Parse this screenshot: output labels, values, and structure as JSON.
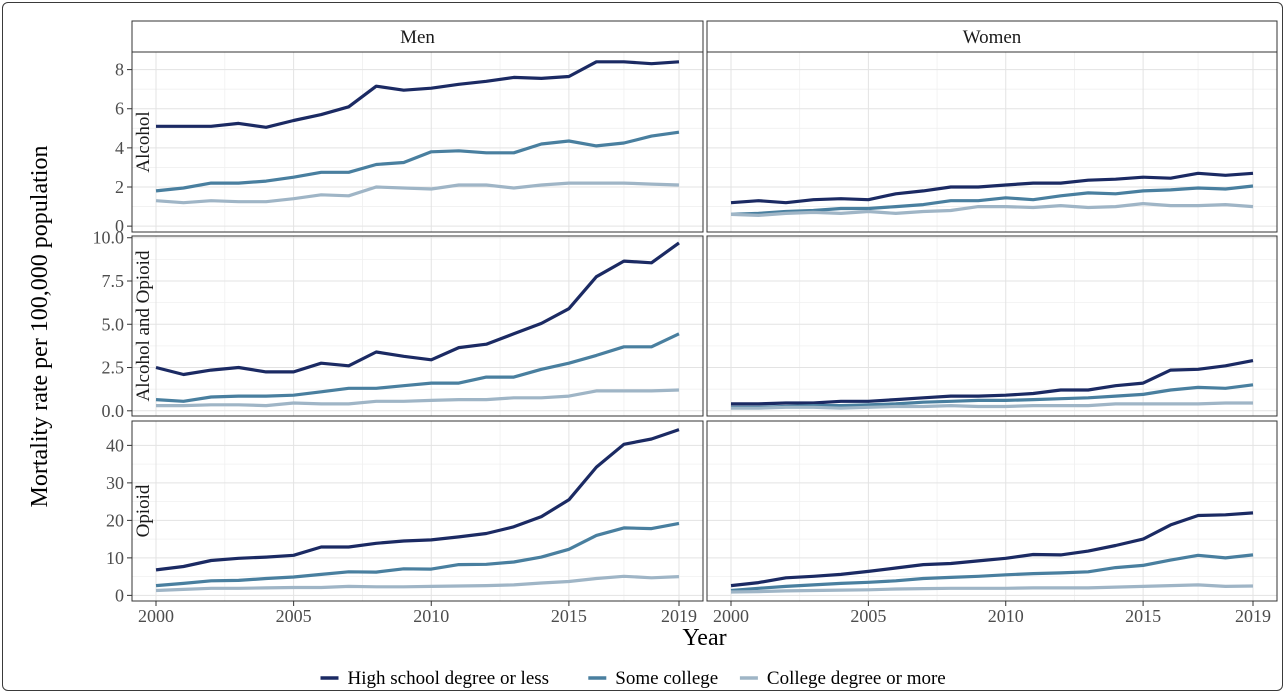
{
  "chart_data": {
    "type": "line",
    "xlabel": "Year",
    "ylabel": "Mortality rate per 100,000 population",
    "x_ticks": [
      2000,
      2005,
      2010,
      2015,
      2019
    ],
    "x": [
      2000,
      2001,
      2002,
      2003,
      2004,
      2005,
      2006,
      2007,
      2008,
      2009,
      2010,
      2011,
      2012,
      2013,
      2014,
      2015,
      2016,
      2017,
      2018,
      2019
    ],
    "columns": [
      "Men",
      "Women"
    ],
    "rows": [
      {
        "label": "Alcohol",
        "ylim": [
          -0.3,
          8.9
        ],
        "y_ticks": [
          0,
          2,
          4,
          6,
          8
        ],
        "y_tick_labels": [
          "0",
          "2",
          "4",
          "6",
          "8"
        ]
      },
      {
        "label": "Alcohol and Opioid",
        "ylim": [
          -0.3,
          10.1
        ],
        "y_ticks": [
          0,
          2.5,
          5,
          7.5,
          10
        ],
        "y_tick_labels": [
          "0.0",
          "2.5",
          "5.0",
          "7.5",
          "10.0"
        ]
      },
      {
        "label": "Opioid",
        "ylim": [
          -1.5,
          46.5
        ],
        "y_ticks": [
          0,
          10,
          20,
          30,
          40
        ],
        "y_tick_labels": [
          "0",
          "10",
          "20",
          "30",
          "40"
        ]
      }
    ],
    "legend": {
      "position": "bottom",
      "entries": [
        "High school degree or less",
        "Some college",
        "College degree or more"
      ]
    },
    "colors": {
      "High school degree or less": "#1b2a63",
      "Some college": "#497f9f",
      "College degree or more": "#9fb5c6"
    },
    "grid": true,
    "panels": [
      {
        "row": "Alcohol",
        "column": "Men",
        "series": [
          {
            "name": "High school degree or less",
            "values": [
              5.1,
              5.1,
              5.1,
              5.25,
              5.05,
              5.4,
              5.7,
              6.1,
              7.15,
              6.95,
              7.05,
              7.25,
              7.4,
              7.6,
              7.55,
              7.65,
              8.4,
              8.4,
              8.3,
              8.4
            ]
          },
          {
            "name": "Some college",
            "values": [
              1.8,
              1.95,
              2.2,
              2.2,
              2.3,
              2.5,
              2.75,
              2.75,
              3.15,
              3.25,
              3.8,
              3.85,
              3.75,
              3.75,
              4.2,
              4.35,
              4.1,
              4.25,
              4.6,
              4.8
            ]
          },
          {
            "name": "College degree or more",
            "values": [
              1.3,
              1.2,
              1.3,
              1.25,
              1.25,
              1.4,
              1.6,
              1.55,
              2.0,
              1.95,
              1.9,
              2.1,
              2.1,
              1.95,
              2.1,
              2.2,
              2.2,
              2.2,
              2.15,
              2.1
            ]
          }
        ]
      },
      {
        "row": "Alcohol",
        "column": "Women",
        "series": [
          {
            "name": "High school degree or less",
            "values": [
              1.2,
              1.3,
              1.2,
              1.35,
              1.4,
              1.35,
              1.65,
              1.8,
              2.0,
              2.0,
              2.1,
              2.2,
              2.2,
              2.35,
              2.4,
              2.5,
              2.45,
              2.7,
              2.6,
              2.7
            ]
          },
          {
            "name": "Some college",
            "values": [
              0.6,
              0.65,
              0.75,
              0.8,
              0.9,
              0.9,
              1.0,
              1.1,
              1.3,
              1.3,
              1.45,
              1.35,
              1.55,
              1.7,
              1.65,
              1.8,
              1.85,
              1.95,
              1.9,
              2.05
            ]
          },
          {
            "name": "College degree or more",
            "values": [
              0.6,
              0.55,
              0.65,
              0.7,
              0.65,
              0.75,
              0.65,
              0.75,
              0.8,
              1.0,
              1.0,
              0.95,
              1.05,
              0.95,
              1.0,
              1.15,
              1.05,
              1.05,
              1.1,
              1.0
            ]
          }
        ]
      },
      {
        "row": "Alcohol and Opioid",
        "column": "Men",
        "series": [
          {
            "name": "High school degree or less",
            "values": [
              2.5,
              2.1,
              2.35,
              2.5,
              2.25,
              2.25,
              2.75,
              2.6,
              3.4,
              3.15,
              2.95,
              3.65,
              3.85,
              4.45,
              5.05,
              5.9,
              7.75,
              8.65,
              8.55,
              9.7
            ]
          },
          {
            "name": "Some college",
            "values": [
              0.65,
              0.55,
              0.8,
              0.85,
              0.85,
              0.9,
              1.1,
              1.3,
              1.3,
              1.45,
              1.6,
              1.6,
              1.95,
              1.95,
              2.4,
              2.75,
              3.2,
              3.7,
              3.7,
              4.45
            ]
          },
          {
            "name": "College degree or more",
            "values": [
              0.3,
              0.3,
              0.35,
              0.35,
              0.3,
              0.45,
              0.4,
              0.4,
              0.55,
              0.55,
              0.6,
              0.65,
              0.65,
              0.75,
              0.75,
              0.85,
              1.15,
              1.15,
              1.15,
              1.2
            ]
          }
        ]
      },
      {
        "row": "Alcohol and Opioid",
        "column": "Women",
        "series": [
          {
            "name": "High school degree or less",
            "values": [
              0.4,
              0.4,
              0.45,
              0.45,
              0.55,
              0.55,
              0.65,
              0.75,
              0.85,
              0.85,
              0.9,
              1.0,
              1.2,
              1.2,
              1.45,
              1.6,
              2.35,
              2.4,
              2.6,
              2.9
            ]
          },
          {
            "name": "Some college",
            "values": [
              0.2,
              0.2,
              0.25,
              0.3,
              0.3,
              0.35,
              0.4,
              0.5,
              0.55,
              0.6,
              0.6,
              0.65,
              0.7,
              0.75,
              0.85,
              0.95,
              1.2,
              1.35,
              1.3,
              1.5
            ]
          },
          {
            "name": "College degree or more",
            "values": [
              0.15,
              0.15,
              0.2,
              0.2,
              0.15,
              0.2,
              0.25,
              0.25,
              0.3,
              0.25,
              0.25,
              0.3,
              0.3,
              0.3,
              0.4,
              0.4,
              0.4,
              0.4,
              0.45,
              0.45
            ]
          }
        ]
      },
      {
        "row": "Opioid",
        "column": "Men",
        "series": [
          {
            "name": "High school degree or less",
            "values": [
              6.8,
              7.7,
              9.3,
              9.9,
              10.2,
              10.7,
              12.9,
              12.9,
              13.9,
              14.5,
              14.8,
              15.6,
              16.5,
              18.3,
              21.0,
              25.5,
              34.2,
              40.3,
              41.7,
              44.2
            ]
          },
          {
            "name": "Some college",
            "values": [
              2.6,
              3.2,
              3.9,
              4.0,
              4.5,
              4.9,
              5.6,
              6.3,
              6.2,
              7.1,
              7.0,
              8.2,
              8.3,
              8.9,
              10.2,
              12.3,
              16.0,
              18.0,
              17.8,
              19.2
            ]
          },
          {
            "name": "College degree or more",
            "values": [
              1.3,
              1.6,
              1.9,
              1.9,
              2.0,
              2.1,
              2.1,
              2.4,
              2.3,
              2.3,
              2.4,
              2.5,
              2.6,
              2.8,
              3.3,
              3.7,
              4.5,
              5.1,
              4.7,
              5.0
            ]
          }
        ]
      },
      {
        "row": "Opioid",
        "column": "Women",
        "series": [
          {
            "name": "High school degree or less",
            "values": [
              2.6,
              3.4,
              4.7,
              5.1,
              5.6,
              6.4,
              7.3,
              8.2,
              8.5,
              9.2,
              9.9,
              10.9,
              10.8,
              11.8,
              13.3,
              15.0,
              18.8,
              21.3,
              21.5,
              22.0
            ]
          },
          {
            "name": "Some college",
            "values": [
              1.3,
              1.9,
              2.4,
              2.8,
              3.2,
              3.5,
              3.9,
              4.5,
              4.8,
              5.1,
              5.5,
              5.8,
              6.0,
              6.3,
              7.4,
              8.0,
              9.4,
              10.7,
              10.0,
              10.8
            ]
          },
          {
            "name": "College degree or more",
            "values": [
              0.9,
              1.0,
              1.2,
              1.3,
              1.4,
              1.5,
              1.7,
              1.8,
              1.9,
              1.9,
              1.9,
              2.0,
              2.0,
              2.0,
              2.2,
              2.4,
              2.6,
              2.8,
              2.4,
              2.5
            ]
          }
        ]
      }
    ]
  }
}
